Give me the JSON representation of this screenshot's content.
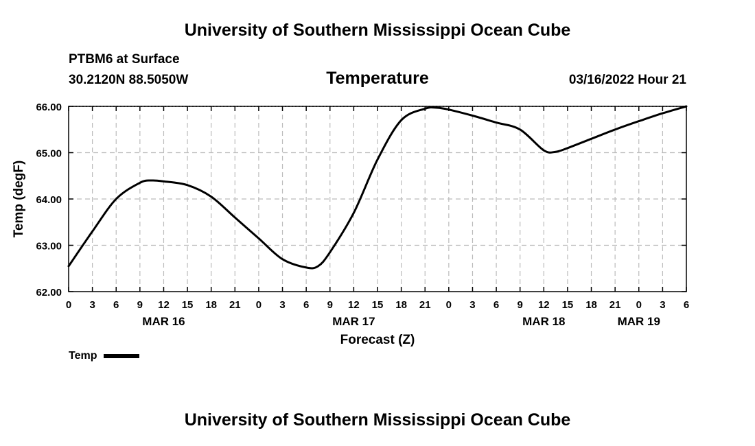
{
  "header": {
    "title": "University of Southern Mississippi Ocean Cube",
    "station": "PTBM6 at Surface",
    "coords": "30.2120N  88.5050W",
    "variable": "Temperature",
    "date": "03/16/2022 Hour 21"
  },
  "footer": {
    "title": "University of Southern Mississippi Ocean Cube"
  },
  "legend": {
    "label": "Temp",
    "color": "#000000"
  },
  "chart_data": {
    "type": "line",
    "title": "Temperature",
    "xlabel": "Forecast (Z)",
    "ylabel": "Temp (degF)",
    "ylim": [
      62.0,
      66.0
    ],
    "xlim_hours": [
      0,
      78
    ],
    "grid": true,
    "y_ticks": [
      "62.00",
      "63.00",
      "64.00",
      "65.00",
      "66.00"
    ],
    "y_tick_values": [
      62,
      63,
      64,
      65,
      66
    ],
    "x_tick_labels": [
      "0",
      "3",
      "6",
      "9",
      "12",
      "15",
      "18",
      "21",
      "0",
      "3",
      "6",
      "9",
      "12",
      "15",
      "18",
      "21",
      "0",
      "3",
      "6",
      "9",
      "12",
      "15",
      "18",
      "21",
      "0",
      "3",
      "6"
    ],
    "date_labels": [
      {
        "label": "MAR 16",
        "hour": 12
      },
      {
        "label": "MAR 17",
        "hour": 36
      },
      {
        "label": "MAR 18",
        "hour": 60
      },
      {
        "label": "MAR 19",
        "hour": 72
      }
    ],
    "series": [
      {
        "name": "Temp",
        "color": "#000000",
        "x": [
          0,
          3,
          6,
          9,
          10.5,
          12,
          15,
          18,
          21,
          24,
          27,
          30,
          31.5,
          33,
          36,
          39,
          42,
          45,
          46.5,
          48,
          51,
          54,
          57,
          60,
          61.5,
          63,
          66,
          69,
          72,
          75,
          78
        ],
        "y": [
          62.55,
          63.3,
          64.0,
          64.35,
          64.4,
          64.38,
          64.3,
          64.05,
          63.6,
          63.15,
          62.7,
          62.52,
          62.55,
          62.85,
          63.7,
          64.85,
          65.7,
          65.95,
          65.97,
          65.93,
          65.8,
          65.65,
          65.5,
          65.05,
          65.02,
          65.1,
          65.3,
          65.5,
          65.68,
          65.85,
          66.0
        ]
      }
    ]
  }
}
